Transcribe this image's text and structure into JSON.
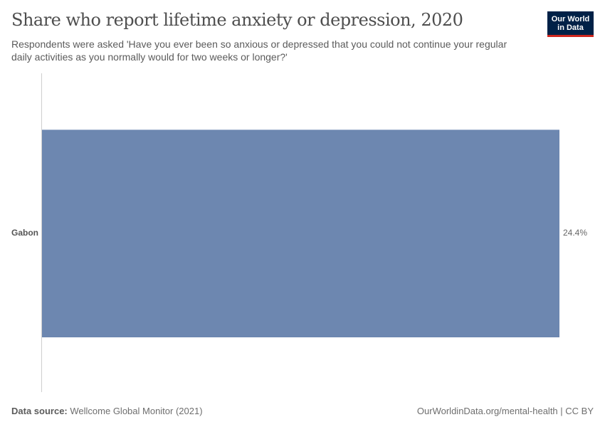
{
  "header": {
    "title": "Share who report lifetime anxiety or depression, 2020",
    "subtitle": "Respondents were asked 'Have you ever been so anxious or depressed that you could not continue your regular daily activities as you normally would for two weeks or longer?'",
    "logo_line1": "Our World",
    "logo_line2": "in Data"
  },
  "footer": {
    "source_label": "Data source:",
    "source_value": "Wellcome Global Monitor (2021)",
    "right": "OurWorldinData.org/mental-health | CC BY"
  },
  "colors": {
    "bar": "#6d87b0",
    "logo_bg": "#002147",
    "logo_accent": "#ce261e"
  },
  "chart_data": {
    "type": "bar",
    "orientation": "horizontal",
    "title": "Share who report lifetime anxiety or depression, 2020",
    "subtitle": "Respondents were asked 'Have you ever been so anxious or depressed that you could not continue your regular daily activities as you normally would for two weeks or longer?'",
    "categories": [
      "Gabon"
    ],
    "values": [
      24.4
    ],
    "value_labels": [
      "24.4%"
    ],
    "xlabel": "",
    "ylabel": "",
    "unit": "%",
    "grid": false,
    "legend": null
  }
}
